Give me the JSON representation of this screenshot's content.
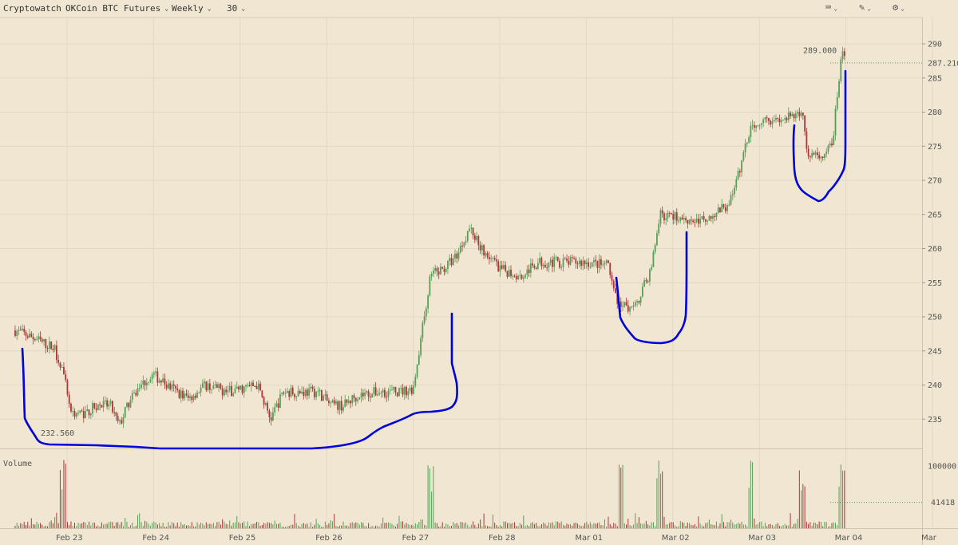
{
  "toolbar": {
    "brand": "Cryptowatch",
    "market": "OKCoin BTC Futures",
    "period": "Weekly",
    "interval": "30",
    "icons": [
      "keyboard-icon",
      "draw-tools-icon",
      "settings-gear-icon"
    ]
  },
  "colors": {
    "background": "#f0e6d2",
    "up": "#5a9e5a",
    "down": "#a83a3a",
    "annotation": "#0000dd",
    "grid": "#e2d8c4"
  },
  "chart_data": {
    "type": "candlestick",
    "price_axis": {
      "ticks": [
        "290",
        "285",
        "280",
        "275",
        "270",
        "265",
        "260",
        "255",
        "250",
        "245",
        "240",
        "235"
      ],
      "ylim": [
        230,
        291.5
      ],
      "last_price_label": "287.210",
      "last_price": 287.21,
      "high_label": "289.000",
      "high": 289.0,
      "low_label": "232.560",
      "low": 232.56
    },
    "volume_axis": {
      "title": "Volume",
      "ticks": [
        "100000"
      ],
      "last_volume_label": "41418",
      "last_volume": 41418,
      "ylim": [
        0,
        112000
      ]
    },
    "x_axis": {
      "ticks": [
        "Feb 23",
        "Feb 24",
        "Feb 25",
        "Feb 26",
        "Feb 27",
        "Feb 28",
        "Mar 01",
        "Mar 02",
        "Mar 03",
        "Mar 04",
        "Mar"
      ]
    },
    "price_path": [
      [
        22.4,
        248
      ],
      [
        22.6,
        247
      ],
      [
        22.75,
        246
      ],
      [
        22.85,
        245.5
      ],
      [
        22.95,
        242
      ],
      [
        23.05,
        236
      ],
      [
        23.2,
        235.8
      ],
      [
        23.35,
        237
      ],
      [
        23.5,
        237
      ],
      [
        23.6,
        234
      ],
      [
        23.7,
        237
      ],
      [
        23.85,
        240
      ],
      [
        24.0,
        241.5
      ],
      [
        24.15,
        240
      ],
      [
        24.4,
        238
      ],
      [
        24.6,
        240
      ],
      [
        24.85,
        239
      ],
      [
        25.2,
        240
      ],
      [
        25.35,
        235
      ],
      [
        25.5,
        239
      ],
      [
        25.9,
        239
      ],
      [
        26.05,
        237
      ],
      [
        26.2,
        237
      ],
      [
        26.35,
        238.5
      ],
      [
        26.6,
        239
      ],
      [
        26.85,
        239
      ],
      [
        27.0,
        239.5
      ],
      [
        27.2,
        256
      ],
      [
        27.35,
        257
      ],
      [
        27.5,
        259
      ],
      [
        27.65,
        263
      ],
      [
        27.8,
        260
      ],
      [
        28.0,
        257
      ],
      [
        28.25,
        256
      ],
      [
        28.45,
        258
      ],
      [
        28.75,
        258
      ],
      [
        29.0,
        258
      ],
      [
        29.25,
        257.5
      ],
      [
        29.35,
        252
      ],
      [
        29.55,
        251
      ],
      [
        29.75,
        257
      ],
      [
        29.85,
        265
      ],
      [
        30.1,
        264.5
      ],
      [
        30.3,
        264
      ],
      [
        30.6,
        266
      ],
      [
        30.7,
        268
      ],
      [
        30.9,
        278
      ],
      [
        31.05,
        279
      ],
      [
        31.3,
        279
      ],
      [
        31.5,
        280
      ],
      [
        31.55,
        274
      ],
      [
        31.75,
        273
      ],
      [
        31.85,
        276
      ],
      [
        31.95,
        289
      ],
      [
        32.0,
        287.21
      ]
    ],
    "annotations": [
      {
        "label": "",
        "color": "#0000dd"
      }
    ]
  }
}
